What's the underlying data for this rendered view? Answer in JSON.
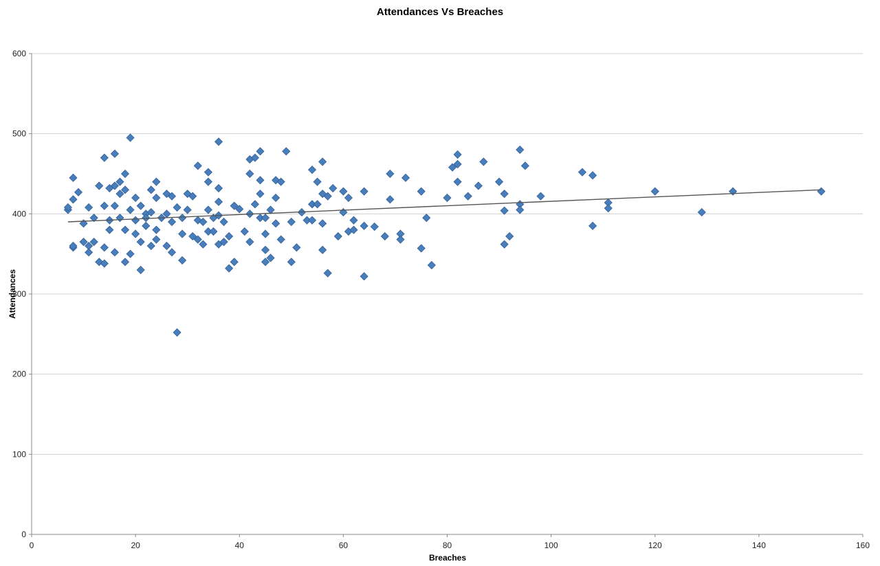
{
  "chart_data": {
    "type": "scatter",
    "title": "Attendances Vs Breaches",
    "xlabel": "Breaches",
    "ylabel": "Attendances",
    "xlim": [
      0,
      160
    ],
    "ylim": [
      0,
      600
    ],
    "x_ticks": [
      0,
      20,
      40,
      60,
      80,
      100,
      120,
      140,
      160
    ],
    "y_ticks": [
      0,
      100,
      200,
      300,
      400,
      500,
      600
    ],
    "grid": "horizontal",
    "legend": "none",
    "colors": {
      "marker": "#4a7ebb",
      "marker_edge": "#2e5f9a",
      "trend": "#555555",
      "grid": "#d0d0d0"
    },
    "trendline": {
      "x": [
        7,
        152
      ],
      "y": [
        390,
        430
      ]
    },
    "series": [
      {
        "points": [
          [
            7,
            405
          ],
          [
            7,
            408
          ],
          [
            8,
            358
          ],
          [
            8,
            360
          ],
          [
            8,
            445
          ],
          [
            8,
            418
          ],
          [
            9,
            427
          ],
          [
            10,
            388
          ],
          [
            10,
            365
          ],
          [
            11,
            408
          ],
          [
            11,
            360
          ],
          [
            11,
            352
          ],
          [
            12,
            365
          ],
          [
            12,
            395
          ],
          [
            13,
            435
          ],
          [
            13,
            340
          ],
          [
            14,
            470
          ],
          [
            14,
            358
          ],
          [
            14,
            338
          ],
          [
            14,
            410
          ],
          [
            15,
            392
          ],
          [
            15,
            380
          ],
          [
            15,
            432
          ],
          [
            16,
            475
          ],
          [
            16,
            435
          ],
          [
            16,
            410
          ],
          [
            16,
            352
          ],
          [
            17,
            425
          ],
          [
            17,
            440
          ],
          [
            17,
            395
          ],
          [
            18,
            450
          ],
          [
            18,
            340
          ],
          [
            18,
            380
          ],
          [
            18,
            430
          ],
          [
            19,
            495
          ],
          [
            19,
            405
          ],
          [
            19,
            350
          ],
          [
            20,
            420
          ],
          [
            20,
            392
          ],
          [
            20,
            375
          ],
          [
            21,
            330
          ],
          [
            21,
            365
          ],
          [
            21,
            410
          ],
          [
            22,
            400
          ],
          [
            22,
            395
          ],
          [
            22,
            385
          ],
          [
            23,
            360
          ],
          [
            23,
            430
          ],
          [
            23,
            402
          ],
          [
            24,
            440
          ],
          [
            24,
            420
          ],
          [
            24,
            380
          ],
          [
            24,
            368
          ],
          [
            25,
            395
          ],
          [
            26,
            425
          ],
          [
            26,
            400
          ],
          [
            26,
            360
          ],
          [
            27,
            422
          ],
          [
            27,
            390
          ],
          [
            27,
            352
          ],
          [
            28,
            252
          ],
          [
            28,
            408
          ],
          [
            29,
            375
          ],
          [
            29,
            342
          ],
          [
            29,
            395
          ],
          [
            30,
            425
          ],
          [
            30,
            405
          ],
          [
            31,
            422
          ],
          [
            31,
            372
          ],
          [
            32,
            460
          ],
          [
            32,
            392
          ],
          [
            32,
            368
          ],
          [
            33,
            390
          ],
          [
            33,
            362
          ],
          [
            34,
            452
          ],
          [
            34,
            440
          ],
          [
            34,
            405
          ],
          [
            34,
            378
          ],
          [
            35,
            395
          ],
          [
            35,
            378
          ],
          [
            36,
            490
          ],
          [
            36,
            432
          ],
          [
            36,
            415
          ],
          [
            36,
            398
          ],
          [
            36,
            362
          ],
          [
            37,
            390
          ],
          [
            37,
            365
          ],
          [
            38,
            372
          ],
          [
            38,
            332
          ],
          [
            39,
            340
          ],
          [
            39,
            410
          ],
          [
            40,
            406
          ],
          [
            41,
            378
          ],
          [
            42,
            468
          ],
          [
            42,
            450
          ],
          [
            42,
            400
          ],
          [
            42,
            365
          ],
          [
            43,
            470
          ],
          [
            43,
            412
          ],
          [
            44,
            478
          ],
          [
            44,
            442
          ],
          [
            44,
            425
          ],
          [
            44,
            395
          ],
          [
            45,
            395
          ],
          [
            45,
            375
          ],
          [
            45,
            355
          ],
          [
            45,
            340
          ],
          [
            46,
            405
          ],
          [
            46,
            345
          ],
          [
            47,
            442
          ],
          [
            47,
            420
          ],
          [
            47,
            388
          ],
          [
            48,
            440
          ],
          [
            48,
            368
          ],
          [
            49,
            478
          ],
          [
            50,
            390
          ],
          [
            50,
            340
          ],
          [
            51,
            358
          ],
          [
            52,
            402
          ],
          [
            53,
            392
          ],
          [
            54,
            455
          ],
          [
            54,
            412
          ],
          [
            54,
            392
          ],
          [
            55,
            440
          ],
          [
            55,
            412
          ],
          [
            56,
            465
          ],
          [
            56,
            425
          ],
          [
            56,
            388
          ],
          [
            56,
            355
          ],
          [
            57,
            422
          ],
          [
            57,
            326
          ],
          [
            58,
            432
          ],
          [
            59,
            372
          ],
          [
            60,
            428
          ],
          [
            60,
            402
          ],
          [
            61,
            420
          ],
          [
            61,
            378
          ],
          [
            62,
            392
          ],
          [
            62,
            380
          ],
          [
            64,
            428
          ],
          [
            64,
            385
          ],
          [
            64,
            322
          ],
          [
            66,
            384
          ],
          [
            68,
            372
          ],
          [
            69,
            450
          ],
          [
            69,
            418
          ],
          [
            71,
            375
          ],
          [
            71,
            368
          ],
          [
            72,
            445
          ],
          [
            75,
            428
          ],
          [
            75,
            357
          ],
          [
            76,
            395
          ],
          [
            77,
            336
          ],
          [
            80,
            420
          ],
          [
            81,
            458
          ],
          [
            82,
            474
          ],
          [
            82,
            462
          ],
          [
            82,
            440
          ],
          [
            84,
            422
          ],
          [
            86,
            435
          ],
          [
            87,
            465
          ],
          [
            90,
            440
          ],
          [
            91,
            425
          ],
          [
            91,
            404
          ],
          [
            91,
            362
          ],
          [
            92,
            372
          ],
          [
            94,
            480
          ],
          [
            94,
            412
          ],
          [
            94,
            405
          ],
          [
            95,
            460
          ],
          [
            98,
            422
          ],
          [
            106,
            452
          ],
          [
            108,
            448
          ],
          [
            108,
            385
          ],
          [
            111,
            414
          ],
          [
            111,
            407
          ],
          [
            120,
            428
          ],
          [
            129,
            402
          ],
          [
            135,
            428
          ],
          [
            152,
            428
          ]
        ]
      }
    ]
  }
}
